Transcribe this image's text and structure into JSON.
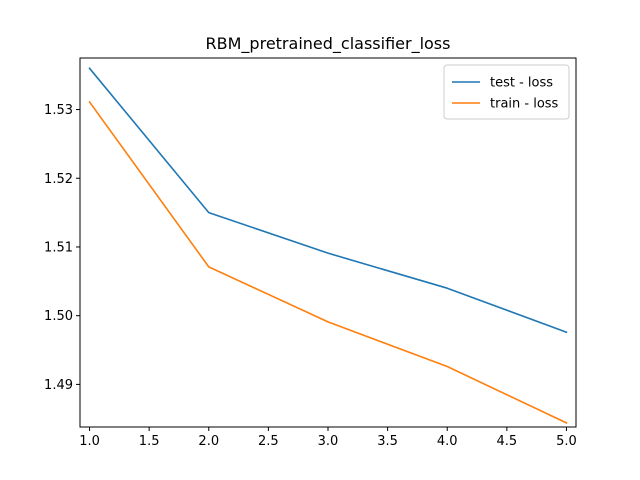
{
  "chart_data": {
    "type": "line",
    "title": "RBM_pretrained_classifier_loss",
    "xlabel": "",
    "ylabel": "",
    "x": [
      1.0,
      2.0,
      3.0,
      4.0,
      5.0
    ],
    "xlim": [
      0.92,
      5.08
    ],
    "ylim": [
      1.4838,
      1.5375
    ],
    "xticks": [
      "1.0",
      "1.5",
      "2.0",
      "2.5",
      "3.0",
      "3.5",
      "4.0",
      "4.5",
      "5.0"
    ],
    "yticks": [
      "1.49",
      "1.50",
      "1.51",
      "1.52",
      "1.53"
    ],
    "grid": false,
    "legend_position": "top-right",
    "series": [
      {
        "name": "test - loss",
        "color": "#1f77b4",
        "values": [
          1.536,
          1.515,
          1.5091,
          1.504,
          1.4976
        ]
      },
      {
        "name": "train - loss",
        "color": "#ff7f0e",
        "values": [
          1.5311,
          1.5071,
          1.4991,
          1.4926,
          1.4844
        ]
      }
    ]
  }
}
